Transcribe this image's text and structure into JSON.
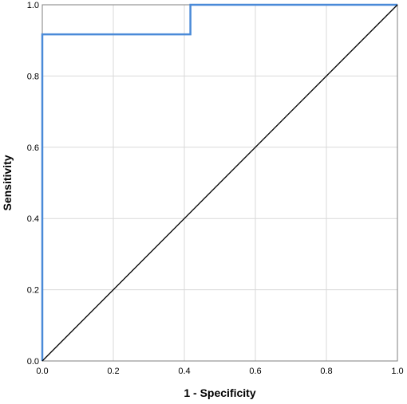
{
  "chart_data": {
    "type": "line",
    "title": "",
    "xlabel": "1 - Specificity",
    "ylabel": "Sensitivity",
    "xlim": [
      0,
      1
    ],
    "ylim": [
      0,
      1
    ],
    "x_ticks": [
      "0.0",
      "0.2",
      "0.4",
      "0.6",
      "0.8",
      "1.0"
    ],
    "y_ticks": [
      "0.0",
      "0.2",
      "0.4",
      "0.6",
      "0.8",
      "1.0"
    ],
    "grid": true,
    "legend": "none",
    "series": [
      {
        "color": "#4a8ad8",
        "x": [
          0.0,
          0.0,
          0.417,
          0.417,
          1.0
        ],
        "y": [
          0.0,
          0.917,
          0.917,
          1.0,
          1.0
        ]
      },
      {
        "color": "#000000",
        "x": [
          0.0,
          1.0
        ],
        "y": [
          0.0,
          1.0
        ]
      }
    ]
  }
}
